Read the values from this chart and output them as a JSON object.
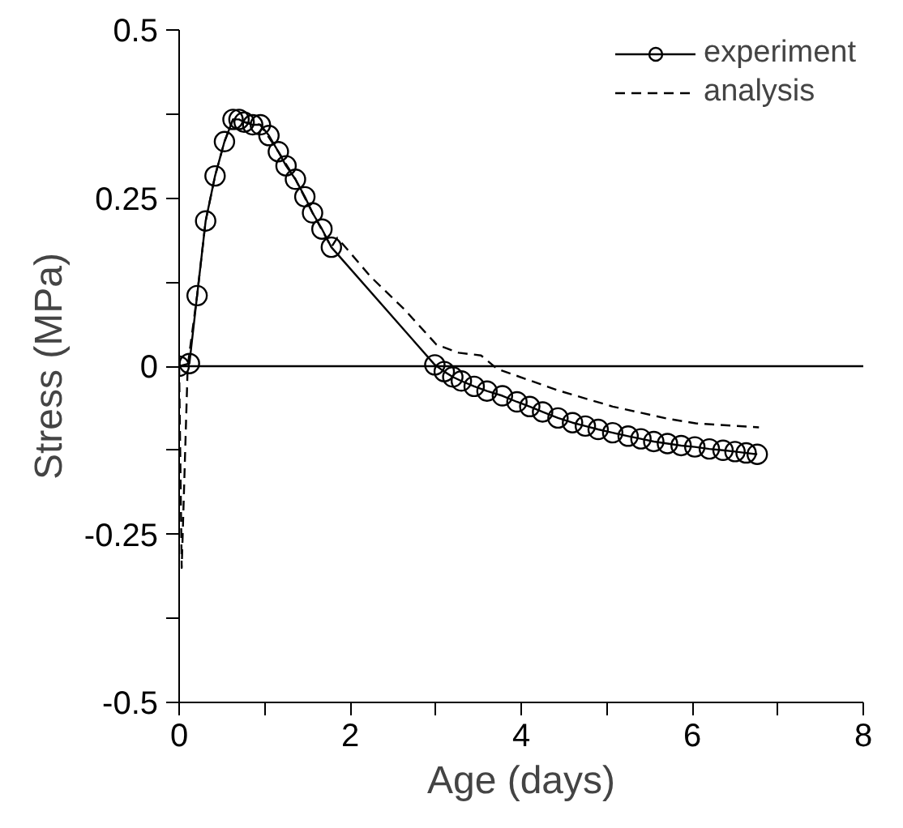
{
  "chart_data": {
    "type": "line",
    "xlabel": "Age (days)",
    "ylabel": "Stress (MPa)",
    "xlim": [
      0,
      8
    ],
    "ylim": [
      -0.5,
      0.5
    ],
    "xticks": [
      0,
      {
        "value": 1,
        "label": null
      },
      2,
      {
        "value": 3,
        "label": null
      },
      4,
      {
        "value": 5,
        "label": null
      },
      6,
      {
        "value": 7,
        "label": null
      },
      8
    ],
    "yticks": [
      -0.5,
      {
        "value": -0.375,
        "label": null
      },
      -0.25,
      {
        "value": -0.125,
        "label": null
      },
      0,
      {
        "value": 0.125,
        "label": null
      },
      0.25,
      {
        "value": 0.375,
        "label": null
      },
      0.5
    ],
    "grid": false,
    "legend": "top right",
    "ref_lines": [
      {
        "axis": "y",
        "value": 0,
        "color": "#000000"
      }
    ],
    "series": [
      {
        "name": "experiment",
        "color": "#000000",
        "marker": "circle",
        "line_style": "solid",
        "x": [
          0.0,
          0.12,
          0.21,
          0.31,
          0.42,
          0.53,
          0.63,
          0.7,
          0.76,
          0.86,
          0.95,
          1.05,
          1.16,
          1.25,
          1.36,
          1.47,
          1.56,
          1.67,
          1.78,
          2.99,
          3.1,
          3.2,
          3.3,
          3.45,
          3.6,
          3.78,
          3.95,
          4.1,
          4.25,
          4.43,
          4.6,
          4.75,
          4.9,
          5.07,
          5.25,
          5.4,
          5.55,
          5.71,
          5.87,
          6.03,
          6.2,
          6.36,
          6.5,
          6.63,
          6.76
        ],
        "values": [
          0.0,
          0.004,
          0.105,
          0.216,
          0.283,
          0.334,
          0.367,
          0.367,
          0.363,
          0.359,
          0.359,
          0.343,
          0.319,
          0.298,
          0.278,
          0.252,
          0.228,
          0.204,
          0.177,
          0.002,
          -0.008,
          -0.016,
          -0.022,
          -0.03,
          -0.037,
          -0.044,
          -0.053,
          -0.06,
          -0.068,
          -0.077,
          -0.084,
          -0.089,
          -0.094,
          -0.099,
          -0.104,
          -0.108,
          -0.112,
          -0.115,
          -0.118,
          -0.12,
          -0.123,
          -0.125,
          -0.127,
          -0.129,
          -0.131
        ]
      },
      {
        "name": "analysis",
        "color": "#000000",
        "marker": "none",
        "line_style": "dashed",
        "x": [
          0.0,
          0.03,
          0.1,
          0.21,
          0.31,
          0.42,
          0.53,
          0.63,
          0.76,
          0.95,
          1.16,
          1.36,
          1.56,
          1.78,
          1.85,
          2.24,
          2.63,
          3.01,
          3.27,
          3.53,
          3.72,
          4.43,
          5.07,
          5.71,
          6.04,
          6.78
        ],
        "values": [
          0.0,
          -0.3,
          0.0,
          0.105,
          0.216,
          0.283,
          0.334,
          0.367,
          0.363,
          0.359,
          0.319,
          0.278,
          0.228,
          0.177,
          0.191,
          0.133,
          0.085,
          0.032,
          0.02,
          0.016,
          -0.004,
          -0.036,
          -0.06,
          -0.078,
          -0.085,
          -0.091
        ]
      }
    ]
  }
}
